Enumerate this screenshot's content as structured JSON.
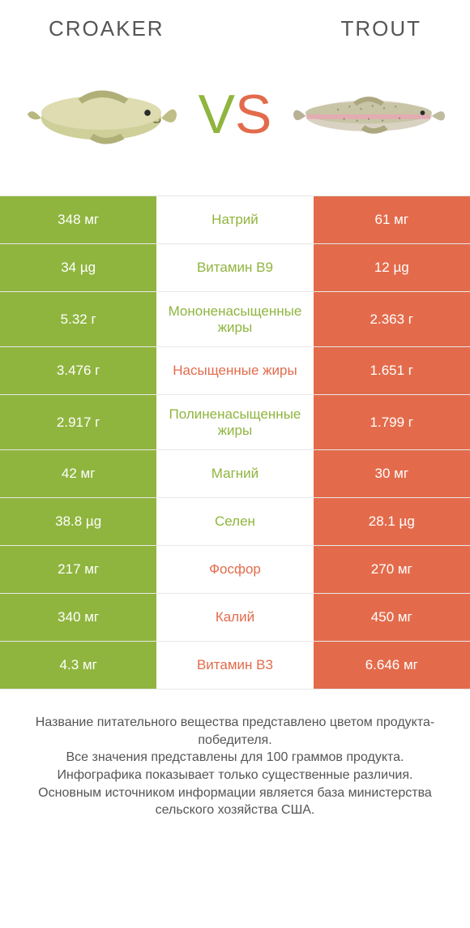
{
  "colors": {
    "left": "#8fb53e",
    "right": "#e36b4b",
    "text": "#555555",
    "white": "#ffffff",
    "border": "#e8e8e8"
  },
  "left_name": "CROAKER",
  "right_name": "TROUT",
  "vs": {
    "v": "V",
    "s": "S"
  },
  "rows": [
    {
      "left": "348 мг",
      "label": "Натрий",
      "right": "61 мг",
      "winner": "left"
    },
    {
      "left": "34 µg",
      "label": "Витамин B9",
      "right": "12 µg",
      "winner": "left"
    },
    {
      "left": "5.32 г",
      "label": "Мононенасыщенные жиры",
      "right": "2.363 г",
      "winner": "left"
    },
    {
      "left": "3.476 г",
      "label": "Насыщенные жиры",
      "right": "1.651 г",
      "winner": "right"
    },
    {
      "left": "2.917 г",
      "label": "Полиненасыщенные жиры",
      "right": "1.799 г",
      "winner": "left"
    },
    {
      "left": "42 мг",
      "label": "Магний",
      "right": "30 мг",
      "winner": "left"
    },
    {
      "left": "38.8 µg",
      "label": "Селен",
      "right": "28.1 µg",
      "winner": "left"
    },
    {
      "left": "217 мг",
      "label": "Фосфор",
      "right": "270 мг",
      "winner": "right"
    },
    {
      "left": "340 мг",
      "label": "Калий",
      "right": "450 мг",
      "winner": "right"
    },
    {
      "left": "4.3 мг",
      "label": "Витамин B3",
      "right": "6.646 мг",
      "winner": "right"
    }
  ],
  "footer_lines": [
    "Название питательного вещества представлено цветом продукта-победителя.",
    "Все значения представлены для 100 граммов продукта.",
    "Инфографика показывает только существенные различия.",
    "Основным источником информации является база министерства сельского хозяйства США."
  ]
}
